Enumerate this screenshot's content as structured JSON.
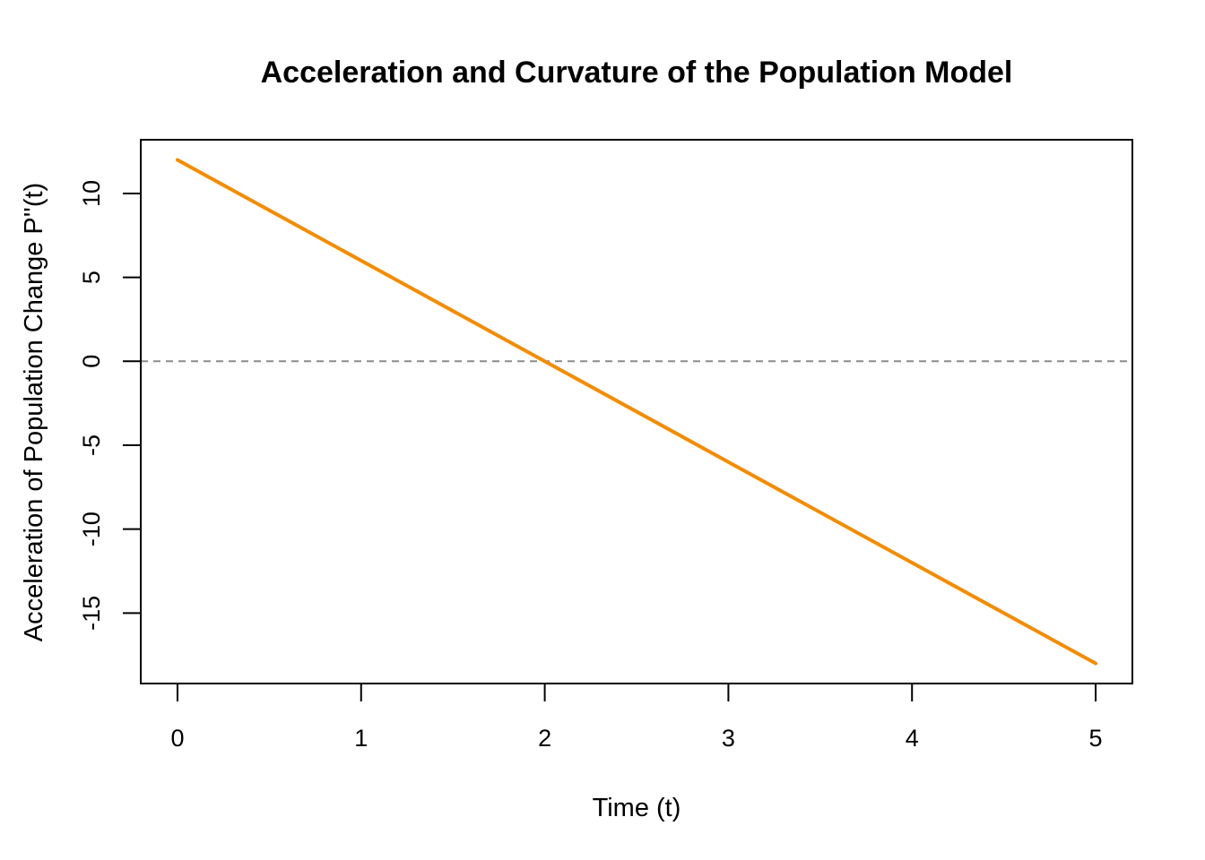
{
  "chart_data": {
    "type": "line",
    "title": "Acceleration and Curvature of the Population Model",
    "xlabel": "Time (t)",
    "ylabel": "Acceleration of Population Change P''(t)",
    "xlim": [
      -0.2,
      5.2
    ],
    "ylim": [
      -19.2,
      13.2
    ],
    "x_ticks": [
      0,
      1,
      2,
      3,
      4,
      5
    ],
    "y_ticks": [
      -15,
      -10,
      -5,
      0,
      5,
      10
    ],
    "grid": false,
    "legend": "none",
    "reference_line": {
      "y": 0,
      "style": "dashed",
      "color": "#8c8c8c"
    },
    "series": [
      {
        "color": "#f28c00",
        "x": [
          0,
          1,
          2,
          3,
          4,
          5
        ],
        "y": [
          12,
          6,
          0,
          -6,
          -12,
          -18
        ]
      }
    ]
  }
}
